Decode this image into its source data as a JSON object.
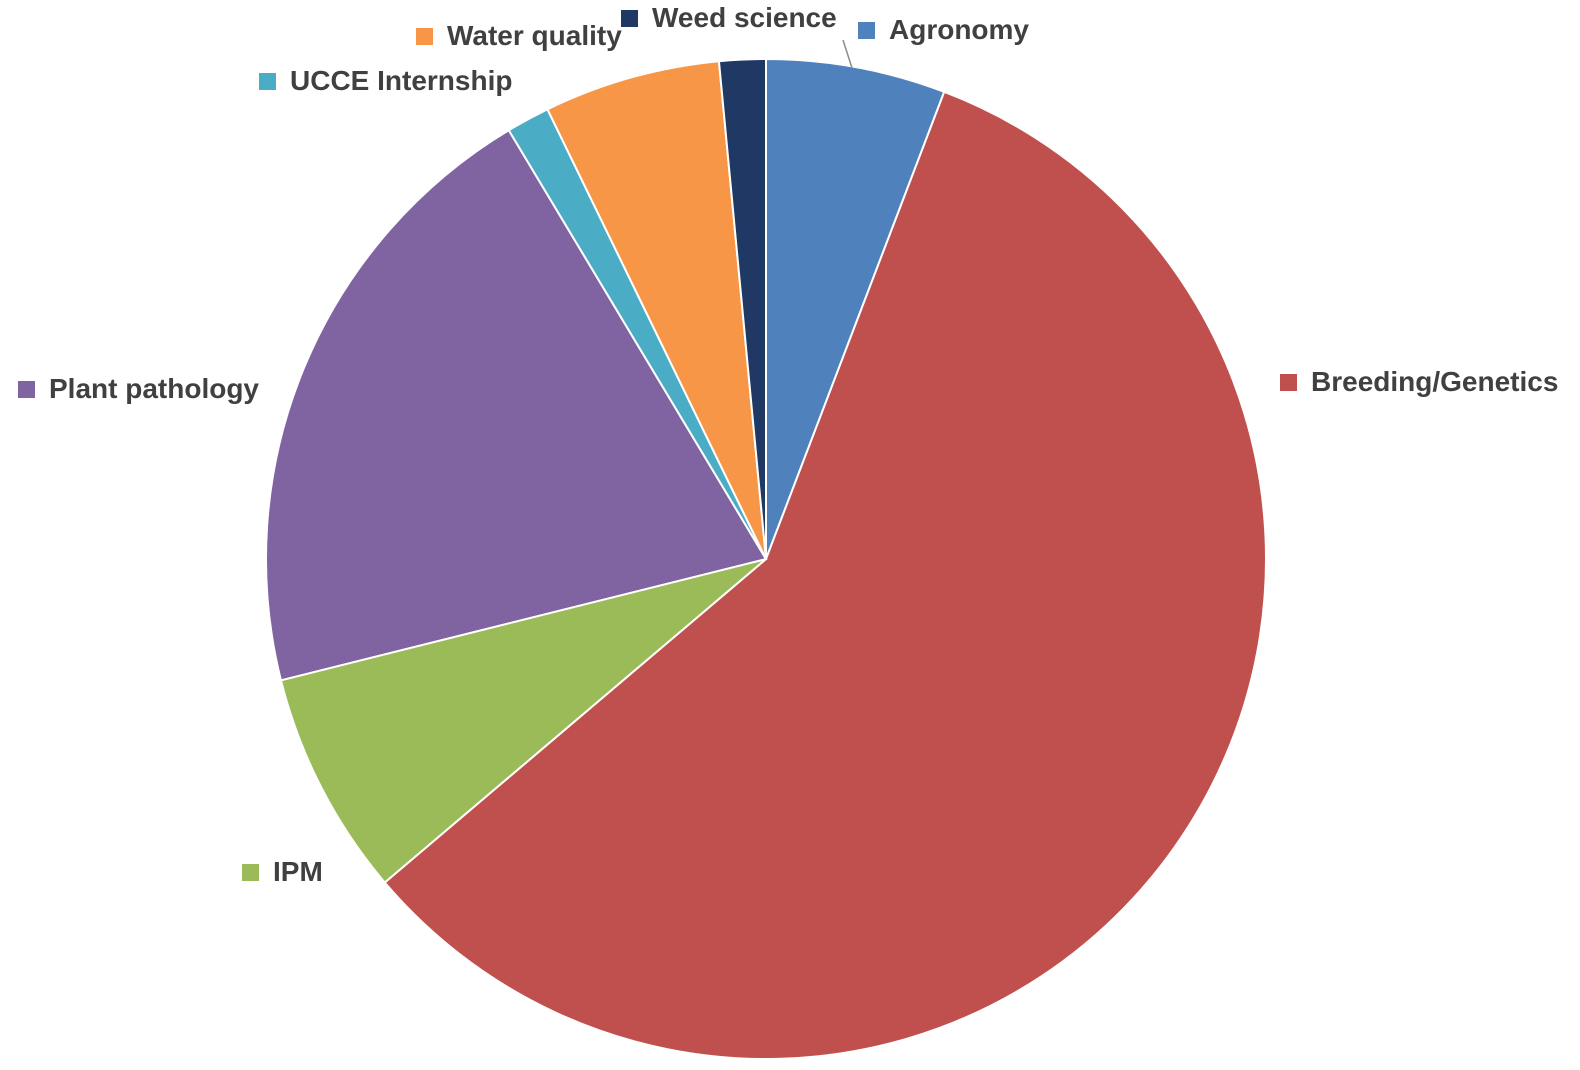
{
  "chart_data": {
    "type": "pie",
    "title": "",
    "start_angle_deg": 0,
    "direction": "clockwise",
    "slices": [
      {
        "label": "Agronomy",
        "value": 5.8,
        "color": "#4F81BD"
      },
      {
        "label": "Breeding/Genetics",
        "value": 58.0,
        "color": "#C0504D"
      },
      {
        "label": "IPM",
        "value": 7.3,
        "color": "#9BBB59"
      },
      {
        "label": "Plant pathology",
        "value": 20.3,
        "color": "#8064A2"
      },
      {
        "label": "UCCE Internship",
        "value": 1.4,
        "color": "#4BACC6"
      },
      {
        "label": "Water quality",
        "value": 5.7,
        "color": "#F79646"
      },
      {
        "label": "Weed science",
        "value": 1.5,
        "color": "#1F3864"
      }
    ],
    "data_labels": "category name with color key"
  }
}
